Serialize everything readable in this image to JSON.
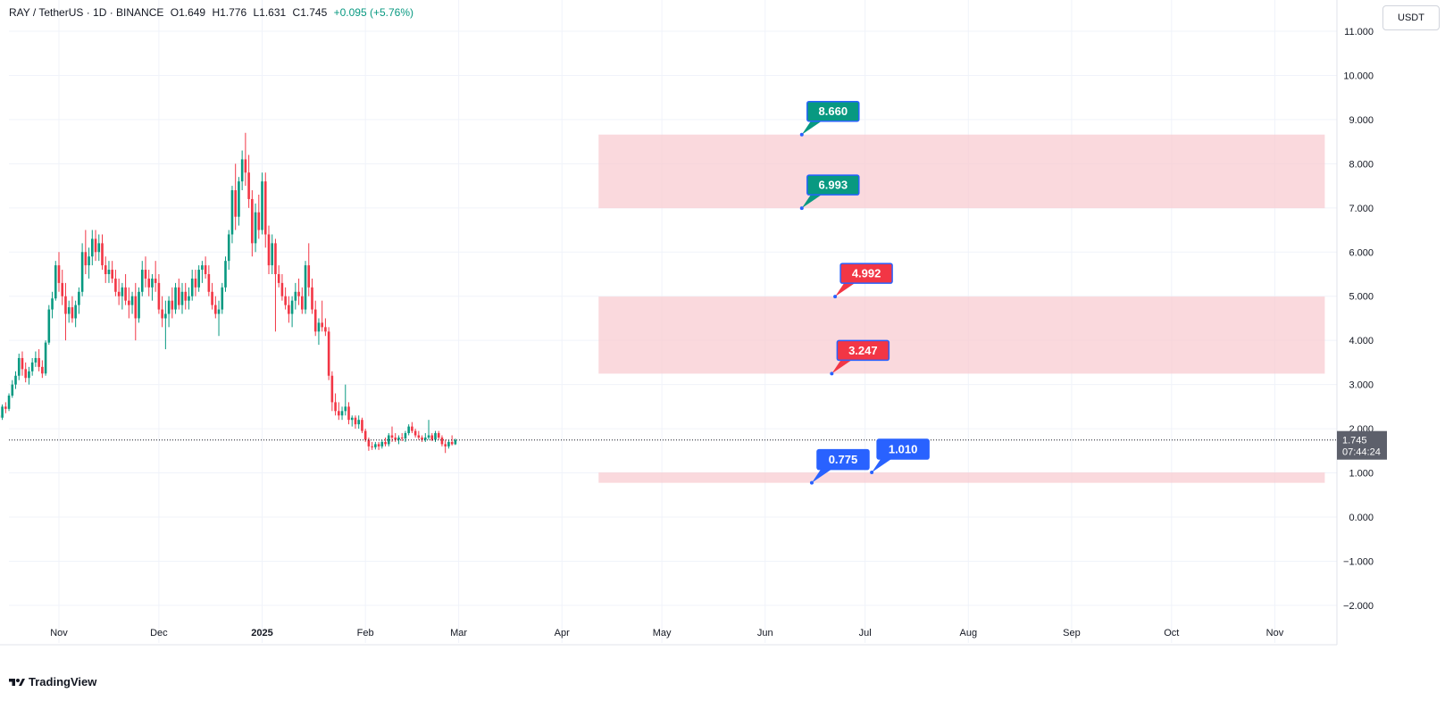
{
  "header": {
    "symbol": "RAY / TetherUS · 1D · BINANCE",
    "open": "O1.649",
    "high": "H1.776",
    "low": "L1.631",
    "close": "C1.745",
    "change": "+0.095 (+5.76%)"
  },
  "currency_button": "USDT",
  "logo_text": "TradingView",
  "last_price": {
    "value": "1.745",
    "countdown": "07:44:24"
  },
  "colors": {
    "up": "#089981",
    "down": "#f23645",
    "zone": "#f8ccd2",
    "green_label": "#089981",
    "red_label": "#f23645",
    "blue_label": "#2962ff"
  },
  "chart_data": {
    "type": "candlestick",
    "yticks": [
      "11.000",
      "10.000",
      "9.000",
      "8.000",
      "7.000",
      "6.000",
      "5.000",
      "4.000",
      "3.000",
      "2.000",
      "1.000",
      "0.000",
      "−1.000",
      "−2.000"
    ],
    "xticks": [
      {
        "label": "Nov",
        "date": "2024-11-01"
      },
      {
        "label": "Dec",
        "date": "2024-12-01"
      },
      {
        "label": "2025",
        "date": "2025-01-01"
      },
      {
        "label": "Feb",
        "date": "2025-02-01"
      },
      {
        "label": "Mar",
        "date": "2025-03-01"
      },
      {
        "label": "Apr",
        "date": "2025-04-01"
      },
      {
        "label": "May",
        "date": "2025-05-01"
      },
      {
        "label": "Jun",
        "date": "2025-06-01"
      },
      {
        "label": "Jul",
        "date": "2025-07-01"
      },
      {
        "label": "Aug",
        "date": "2025-08-01"
      },
      {
        "label": "Sep",
        "date": "2025-09-01"
      },
      {
        "label": "Oct",
        "date": "2025-10-01"
      },
      {
        "label": "Nov",
        "date": "2025-11-01"
      }
    ],
    "ylim": [
      -2.2,
      11.1
    ],
    "zones": [
      {
        "low": 6.993,
        "high": 8.66,
        "start": "2025-04-12",
        "end": "2025-11-16"
      },
      {
        "low": 3.247,
        "high": 4.992,
        "start": "2025-04-12",
        "end": "2025-11-16"
      },
      {
        "low": 0.775,
        "high": 1.01,
        "start": "2025-04-12",
        "end": "2025-11-16"
      }
    ],
    "price_labels": [
      {
        "text": "8.660",
        "value": 8.66,
        "date": "2025-06-12",
        "color": "green"
      },
      {
        "text": "6.993",
        "value": 6.993,
        "date": "2025-06-12",
        "color": "green"
      },
      {
        "text": "4.992",
        "value": 4.992,
        "date": "2025-06-22",
        "color": "red"
      },
      {
        "text": "3.247",
        "value": 3.247,
        "date": "2025-06-21",
        "color": "red"
      },
      {
        "text": "0.775",
        "value": 0.775,
        "date": "2025-06-15",
        "color": "blue"
      },
      {
        "text": "1.010",
        "value": 1.01,
        "date": "2025-07-03",
        "color": "blue"
      }
    ],
    "candles_start": "2024-10-12",
    "candles": [
      [
        2.05,
        2.2,
        2.0,
        2.15
      ],
      [
        2.15,
        2.35,
        2.1,
        2.3
      ],
      [
        2.3,
        2.45,
        2.2,
        2.25
      ],
      [
        2.25,
        2.55,
        2.2,
        2.5
      ],
      [
        2.5,
        2.6,
        2.35,
        2.45
      ],
      [
        2.45,
        2.8,
        2.4,
        2.75
      ],
      [
        2.75,
        3.1,
        2.7,
        3.0
      ],
      [
        3.0,
        3.3,
        2.9,
        3.2
      ],
      [
        3.2,
        3.7,
        3.1,
        3.6
      ],
      [
        3.6,
        3.75,
        3.2,
        3.35
      ],
      [
        3.35,
        3.5,
        3.05,
        3.15
      ],
      [
        3.15,
        3.4,
        3.0,
        3.3
      ],
      [
        3.3,
        3.6,
        3.2,
        3.5
      ],
      [
        3.5,
        3.75,
        3.4,
        3.6
      ],
      [
        3.6,
        3.8,
        3.3,
        3.4
      ],
      [
        3.4,
        3.55,
        3.15,
        3.25
      ],
      [
        3.25,
        4.0,
        3.2,
        3.95
      ],
      [
        3.95,
        4.8,
        3.9,
        4.7
      ],
      [
        4.7,
        5.1,
        4.5,
        4.95
      ],
      [
        4.95,
        5.8,
        4.9,
        5.7
      ],
      [
        5.7,
        6.0,
        5.1,
        5.3
      ],
      [
        5.3,
        5.6,
        4.8,
        5.0
      ],
      [
        5.0,
        5.3,
        4.0,
        4.6
      ],
      [
        4.6,
        4.9,
        4.4,
        4.75
      ],
      [
        4.75,
        5.0,
        4.4,
        4.5
      ],
      [
        4.5,
        4.9,
        4.3,
        4.8
      ],
      [
        4.8,
        5.2,
        4.6,
        5.1
      ],
      [
        5.1,
        6.2,
        5.0,
        6.0
      ],
      [
        6.0,
        6.5,
        5.5,
        5.7
      ],
      [
        5.7,
        6.1,
        5.4,
        5.9
      ],
      [
        5.9,
        6.5,
        5.7,
        6.3
      ],
      [
        6.3,
        6.5,
        5.8,
        6.0
      ],
      [
        6.0,
        6.4,
        5.8,
        6.2
      ],
      [
        6.2,
        6.4,
        5.6,
        5.7
      ],
      [
        5.7,
        5.9,
        5.3,
        5.5
      ],
      [
        5.5,
        5.8,
        5.3,
        5.6
      ],
      [
        5.6,
        5.8,
        5.3,
        5.4
      ],
      [
        5.4,
        5.6,
        5.0,
        5.1
      ],
      [
        5.1,
        5.4,
        4.8,
        5.0
      ],
      [
        5.0,
        5.3,
        4.7,
        5.2
      ],
      [
        5.2,
        5.5,
        4.8,
        4.9
      ],
      [
        4.9,
        5.2,
        4.5,
        4.8
      ],
      [
        4.8,
        5.1,
        4.6,
        5.0
      ],
      [
        5.0,
        5.3,
        4.0,
        4.5
      ],
      [
        4.5,
        5.2,
        4.4,
        5.1
      ],
      [
        5.1,
        5.8,
        5.0,
        5.6
      ],
      [
        5.6,
        5.9,
        5.2,
        5.4
      ],
      [
        5.4,
        5.6,
        5.0,
        5.2
      ],
      [
        5.2,
        5.5,
        4.9,
        5.4
      ],
      [
        5.4,
        5.8,
        5.1,
        5.3
      ],
      [
        5.3,
        5.5,
        4.6,
        4.7
      ],
      [
        4.7,
        5.0,
        4.3,
        4.5
      ],
      [
        4.5,
        4.9,
        3.8,
        4.6
      ],
      [
        4.6,
        5.0,
        4.3,
        4.9
      ],
      [
        4.9,
        5.2,
        4.5,
        4.7
      ],
      [
        4.7,
        5.3,
        4.6,
        5.2
      ],
      [
        5.2,
        5.4,
        4.7,
        4.8
      ],
      [
        4.8,
        5.3,
        4.6,
        5.1
      ],
      [
        5.1,
        5.3,
        4.7,
        4.9
      ],
      [
        4.9,
        5.2,
        4.7,
        5.0
      ],
      [
        5.0,
        5.6,
        4.9,
        5.4
      ],
      [
        5.4,
        5.6,
        5.0,
        5.2
      ],
      [
        5.2,
        5.7,
        5.1,
        5.6
      ],
      [
        5.6,
        5.8,
        5.3,
        5.7
      ],
      [
        5.7,
        5.9,
        5.4,
        5.5
      ],
      [
        5.5,
        5.7,
        5.0,
        5.1
      ],
      [
        5.1,
        5.3,
        4.7,
        4.8
      ],
      [
        4.8,
        5.0,
        4.5,
        4.6
      ],
      [
        4.6,
        4.9,
        4.1,
        4.7
      ],
      [
        4.7,
        5.3,
        4.6,
        5.2
      ],
      [
        5.2,
        5.9,
        5.1,
        5.8
      ],
      [
        5.8,
        6.5,
        5.6,
        6.4
      ],
      [
        6.4,
        7.5,
        6.2,
        7.4
      ],
      [
        7.4,
        8.0,
        6.5,
        6.8
      ],
      [
        6.8,
        7.7,
        6.6,
        7.6
      ],
      [
        7.6,
        8.3,
        7.4,
        8.1
      ],
      [
        8.1,
        8.7,
        7.5,
        7.8
      ],
      [
        7.8,
        8.2,
        7.0,
        7.2
      ],
      [
        7.2,
        7.4,
        5.9,
        6.2
      ],
      [
        6.2,
        7.1,
        6.0,
        6.9
      ],
      [
        6.9,
        7.3,
        6.3,
        6.5
      ],
      [
        6.5,
        7.8,
        6.4,
        7.6
      ],
      [
        7.6,
        7.8,
        6.1,
        6.4
      ],
      [
        6.4,
        6.6,
        5.5,
        5.7
      ],
      [
        5.7,
        6.4,
        5.5,
        6.2
      ],
      [
        6.2,
        6.3,
        4.2,
        5.5
      ],
      [
        5.5,
        5.7,
        5.2,
        5.3
      ],
      [
        5.3,
        5.5,
        4.9,
        5.0
      ],
      [
        5.0,
        5.2,
        4.7,
        4.8
      ],
      [
        4.8,
        5.0,
        4.4,
        4.6
      ],
      [
        4.6,
        5.0,
        4.3,
        4.9
      ],
      [
        4.9,
        5.3,
        4.7,
        5.1
      ],
      [
        5.1,
        5.4,
        4.8,
        5.0
      ],
      [
        5.0,
        5.2,
        4.6,
        4.7
      ],
      [
        4.7,
        5.8,
        4.6,
        5.7
      ],
      [
        5.7,
        6.2,
        5.0,
        5.2
      ],
      [
        5.2,
        5.4,
        4.6,
        4.7
      ],
      [
        4.7,
        4.9,
        4.1,
        4.2
      ],
      [
        4.2,
        4.5,
        3.9,
        4.4
      ],
      [
        4.4,
        4.9,
        4.2,
        4.3
      ],
      [
        4.3,
        4.5,
        4.1,
        4.2
      ],
      [
        4.2,
        4.3,
        3.1,
        3.2
      ],
      [
        3.2,
        3.3,
        2.4,
        2.6
      ],
      [
        2.6,
        2.8,
        2.3,
        2.4
      ],
      [
        2.4,
        2.6,
        2.2,
        2.3
      ],
      [
        2.3,
        2.5,
        2.2,
        2.4
      ],
      [
        2.4,
        3.0,
        2.3,
        2.5
      ],
      [
        2.5,
        2.6,
        2.1,
        2.2
      ],
      [
        2.2,
        2.3,
        2.05,
        2.25
      ],
      [
        2.25,
        2.3,
        2.0,
        2.1
      ],
      [
        2.1,
        2.3,
        2.0,
        2.2
      ],
      [
        2.2,
        2.25,
        1.9,
        1.95
      ],
      [
        1.95,
        2.0,
        1.7,
        1.75
      ],
      [
        1.75,
        1.8,
        1.5,
        1.6
      ],
      [
        1.6,
        1.7,
        1.52,
        1.58
      ],
      [
        1.58,
        1.7,
        1.53,
        1.65
      ],
      [
        1.65,
        1.7,
        1.52,
        1.6
      ],
      [
        1.6,
        1.75,
        1.55,
        1.7
      ],
      [
        1.7,
        1.8,
        1.6,
        1.65
      ],
      [
        1.65,
        1.9,
        1.6,
        1.85
      ],
      [
        1.85,
        2.05,
        1.7,
        1.8
      ],
      [
        1.8,
        1.9,
        1.7,
        1.75
      ],
      [
        1.75,
        1.85,
        1.65,
        1.8
      ],
      [
        1.8,
        1.9,
        1.72,
        1.78
      ],
      [
        1.78,
        1.95,
        1.7,
        1.9
      ],
      [
        1.9,
        2.1,
        1.85,
        2.05
      ],
      [
        2.05,
        2.15,
        1.9,
        1.95
      ],
      [
        1.95,
        2.0,
        1.8,
        1.85
      ],
      [
        1.85,
        1.95,
        1.75,
        1.8
      ],
      [
        1.8,
        1.85,
        1.7,
        1.75
      ],
      [
        1.75,
        1.9,
        1.7,
        1.8
      ],
      [
        1.8,
        2.2,
        1.75,
        1.85
      ],
      [
        1.85,
        1.9,
        1.72,
        1.75
      ],
      [
        1.75,
        1.95,
        1.7,
        1.9
      ],
      [
        1.9,
        1.95,
        1.75,
        1.8
      ],
      [
        1.8,
        1.85,
        1.6,
        1.65
      ],
      [
        1.65,
        1.75,
        1.45,
        1.6
      ],
      [
        1.6,
        1.75,
        1.55,
        1.7
      ],
      [
        1.7,
        1.85,
        1.62,
        1.65
      ],
      [
        1.649,
        1.776,
        1.631,
        1.745
      ]
    ]
  }
}
